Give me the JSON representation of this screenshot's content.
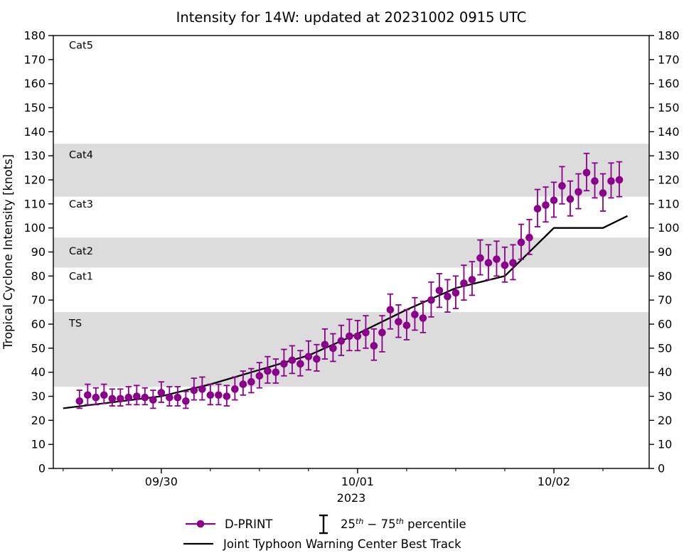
{
  "title": "Intensity for 14W: updated at 20231002 0915 UTC",
  "axes": {
    "ylabel": "Tropical Cyclone Intensity [knots]",
    "xlabel_year": "2023",
    "ylim": [
      0,
      180
    ],
    "y_tick_step": 10,
    "y_ticks": [
      0,
      10,
      20,
      30,
      40,
      50,
      60,
      70,
      80,
      90,
      100,
      110,
      120,
      130,
      140,
      150,
      160,
      170,
      180
    ],
    "x_major_ticks": [
      {
        "t": 0,
        "label": "09/30"
      },
      {
        "t": 24,
        "label": "10/01"
      },
      {
        "t": 48,
        "label": "10/02"
      }
    ],
    "x_minor_ticks_hours": [
      -12,
      -6,
      6,
      12,
      18,
      30,
      36,
      42,
      54
    ],
    "x_range_hours": [
      -13.2,
      59.65
    ]
  },
  "category_bands": {
    "shaded": [
      {
        "name": "TS",
        "from": 34,
        "to": 65
      },
      {
        "name": "Cat2",
        "from": 83.5,
        "to": 96
      },
      {
        "name": "Cat4",
        "from": 113,
        "to": 135
      }
    ],
    "labels": [
      {
        "text": "Cat5",
        "value": 176
      },
      {
        "text": "Cat4",
        "value": 130.5
      },
      {
        "text": "Cat3",
        "value": 110
      },
      {
        "text": "Cat2",
        "value": 90.5
      },
      {
        "text": "Cat1",
        "value": 80
      },
      {
        "text": "TS",
        "value": 60.5
      }
    ]
  },
  "legend": {
    "dprint_label": "D-PRINT",
    "percentile_parts": [
      {
        "text": "25",
        "sup": false
      },
      {
        "text": "th",
        "sup": true
      },
      {
        "text": " − 75",
        "sup": false
      },
      {
        "text": "th",
        "sup": true
      },
      {
        "text": " percentile",
        "sup": false
      }
    ],
    "jtwc_label": "Joint Typhoon Warning Center Best Track"
  },
  "colors": {
    "dprint": "#8B008B",
    "jtwc": "#000000",
    "band_gray": "#DCDCDC",
    "axis": "#000000",
    "background": "#FFFFFF"
  },
  "chart_data": {
    "type": "line",
    "title": "Intensity for 14W: updated at 20231002 0915 UTC",
    "xlabel": "2023",
    "ylabel": "Tropical Cyclone Intensity [knots]",
    "ylim": [
      0,
      180
    ],
    "x_unit": "hours relative to 2023-09-30 00:00 UTC",
    "x_tick_labels": [
      "09/30",
      "10/01",
      "10/02"
    ],
    "legend_position": "bottom-center",
    "grid": false,
    "series": [
      {
        "name": "D-PRINT",
        "style": "markers_with_errorbars",
        "color": "#8B008B",
        "errorbar_meaning": "25th-75th percentile",
        "t": [
          -10,
          -9,
          -8,
          -7,
          -6,
          -5,
          -4,
          -3,
          -2,
          -1,
          0,
          1,
          2,
          3,
          4,
          5,
          6,
          7,
          8,
          9,
          10,
          11,
          12,
          13,
          14,
          15,
          16,
          17,
          18,
          19,
          20,
          21,
          22,
          23,
          24,
          25,
          26,
          27,
          28,
          29,
          30,
          31,
          32,
          33,
          34,
          35,
          36,
          37,
          38,
          39,
          40,
          41,
          42,
          43,
          44,
          45,
          46,
          47,
          48,
          49,
          50,
          51,
          52,
          53,
          54,
          55,
          56
        ],
        "values": [
          28,
          30.5,
          29.5,
          30.5,
          29,
          29,
          29.5,
          30,
          29.5,
          28.5,
          31.5,
          29.5,
          29.5,
          28,
          32.5,
          33,
          30.5,
          30.5,
          30,
          33,
          35,
          36,
          38.5,
          40.5,
          40,
          43.5,
          45,
          43.5,
          46.5,
          45.5,
          51.5,
          50,
          53,
          55,
          55,
          56.5,
          51,
          56.5,
          66,
          61,
          59.5,
          64,
          62.5,
          70,
          74,
          71.5,
          73,
          77,
          78.5,
          87.5,
          85.5,
          87,
          84.5,
          85.5,
          94,
          96,
          108,
          109.5,
          111.5,
          117.5,
          112,
          115,
          123,
          119.5,
          114.5,
          119.5,
          120
        ],
        "err_lo": [
          3,
          4,
          3,
          3.5,
          3,
          3,
          3,
          3.5,
          3,
          3.5,
          4,
          3.5,
          3.5,
          3,
          4,
          4.5,
          4,
          4,
          4,
          4.5,
          4.5,
          4.5,
          5,
          5,
          4.5,
          5,
          5.5,
          5,
          5.5,
          5,
          6,
          5.5,
          6,
          6,
          6,
          6.5,
          6,
          8,
          8,
          6.5,
          6,
          6.5,
          6,
          7,
          7,
          6.5,
          6.5,
          7,
          6.5,
          7,
          7,
          7,
          7,
          7,
          7,
          7,
          7.5,
          7,
          7,
          7.5,
          7,
          7,
          7.5,
          7,
          7.5,
          7,
          7
        ],
        "err_hi": [
          4.5,
          4.5,
          4,
          4.5,
          4,
          4,
          4.5,
          4.5,
          4,
          4,
          4.5,
          4.5,
          4.5,
          4,
          5,
          5,
          4.5,
          4.5,
          4.5,
          5,
          5.5,
          5.5,
          5.5,
          6,
          5.5,
          6,
          6,
          5.5,
          6.5,
          6,
          6.5,
          6,
          6.5,
          7,
          6.5,
          7,
          7,
          7,
          6.5,
          7,
          6.5,
          7,
          7,
          7.5,
          7,
          7,
          7,
          7.5,
          7.5,
          7.5,
          7.5,
          7.5,
          7.5,
          7.5,
          7.5,
          7.5,
          8,
          7.5,
          7.5,
          8,
          7.5,
          7.5,
          8,
          7.5,
          8,
          7.5,
          7.5
        ]
      },
      {
        "name": "Joint Typhoon Warning Center Best Track",
        "style": "line",
        "color": "#000000",
        "t": [
          -12,
          -6,
          0,
          6,
          12,
          18,
          24,
          30,
          36,
          42,
          48,
          54,
          57
        ],
        "values": [
          25,
          27.5,
          30,
          35,
          41,
          47,
          56,
          66,
          75,
          80,
          100,
          100,
          105
        ]
      }
    ]
  }
}
